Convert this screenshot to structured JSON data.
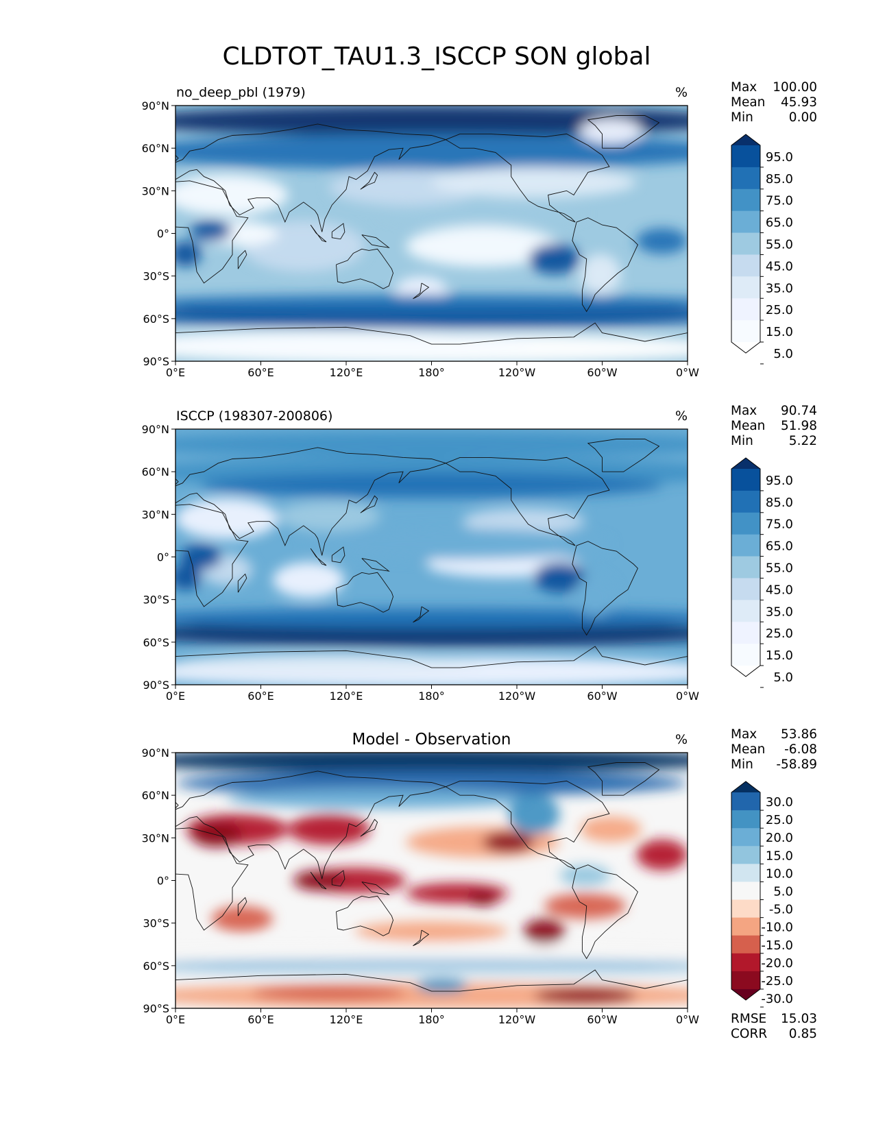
{
  "figure": {
    "title": "CLDTOT_TAU1.3_ISCCP SON global"
  },
  "chart_data": [
    {
      "type": "heatmap",
      "subtitle_left": "no_deep_pbl (1979)",
      "subtitle_center": "",
      "units": "%",
      "xlabel": "",
      "ylabel": "",
      "x_ticks": [
        "0°E",
        "60°E",
        "120°E",
        "180°",
        "120°W",
        "60°W",
        "0°W"
      ],
      "y_ticks": [
        "90°N",
        "60°N",
        "30°N",
        "0°",
        "30°S",
        "60°S",
        "90°S"
      ],
      "xlim": [
        0,
        360
      ],
      "ylim": [
        -90,
        90
      ],
      "stats": [
        {
          "label": "Max",
          "value": "100.00"
        },
        {
          "label": "Mean",
          "value": "45.93"
        },
        {
          "label": "Min",
          "value": "0.00"
        }
      ],
      "colorbar": {
        "ticks": [
          "95.0",
          "85.0",
          "75.0",
          "65.0",
          "55.0",
          "45.0",
          "35.0",
          "25.0",
          "15.0",
          "5.0"
        ],
        "colors": [
          "#08306b",
          "#08519c",
          "#2171b5",
          "#4292c6",
          "#6baed6",
          "#9ecae1",
          "#c6dbef",
          "#deebf7",
          "#eff3ff",
          "#f7fbff",
          "#ffffff"
        ]
      }
    },
    {
      "type": "heatmap",
      "subtitle_left": "ISCCP (198307-200806)",
      "subtitle_center": "",
      "units": "%",
      "xlabel": "",
      "ylabel": "",
      "x_ticks": [
        "0°E",
        "60°E",
        "120°E",
        "180°",
        "120°W",
        "60°W",
        "0°W"
      ],
      "y_ticks": [
        "90°N",
        "60°N",
        "30°N",
        "0°",
        "30°S",
        "60°S",
        "90°S"
      ],
      "xlim": [
        0,
        360
      ],
      "ylim": [
        -90,
        90
      ],
      "stats": [
        {
          "label": "Max",
          "value": "90.74"
        },
        {
          "label": "Mean",
          "value": "51.98"
        },
        {
          "label": "Min",
          "value": "5.22"
        }
      ],
      "colorbar": {
        "ticks": [
          "95.0",
          "85.0",
          "75.0",
          "65.0",
          "55.0",
          "45.0",
          "35.0",
          "25.0",
          "15.0",
          "5.0"
        ],
        "colors": [
          "#08306b",
          "#08519c",
          "#2171b5",
          "#4292c6",
          "#6baed6",
          "#9ecae1",
          "#c6dbef",
          "#deebf7",
          "#eff3ff",
          "#f7fbff",
          "#ffffff"
        ]
      }
    },
    {
      "type": "heatmap",
      "subtitle_left": "",
      "subtitle_center": "Model - Observation",
      "units": "%",
      "xlabel": "",
      "ylabel": "",
      "x_ticks": [
        "0°E",
        "60°E",
        "120°E",
        "180°",
        "120°W",
        "60°W",
        "0°W"
      ],
      "y_ticks": [
        "90°N",
        "60°N",
        "30°N",
        "0°",
        "30°S",
        "60°S",
        "90°S"
      ],
      "xlim": [
        0,
        360
      ],
      "ylim": [
        -90,
        90
      ],
      "stats": [
        {
          "label": "Max",
          "value": "53.86"
        },
        {
          "label": "Mean",
          "value": "-6.08"
        },
        {
          "label": "Min",
          "value": "-58.89"
        }
      ],
      "extra_stats": [
        {
          "label": "RMSE",
          "value": "15.03"
        },
        {
          "label": "CORR",
          "value": "0.85"
        }
      ],
      "colorbar": {
        "ticks": [
          "30.0",
          "25.0",
          "20.0",
          "15.0",
          "10.0",
          "5.0",
          "-5.0",
          "-10.0",
          "-15.0",
          "-20.0",
          "-25.0",
          "-30.0"
        ],
        "colors": [
          "#053061",
          "#2166ac",
          "#4393c3",
          "#6baed6",
          "#92c5de",
          "#d1e5f0",
          "#f7f7f7",
          "#fddbc7",
          "#f4a582",
          "#d6604d",
          "#b2182b",
          "#8b0a1f",
          "#67001f"
        ]
      }
    }
  ]
}
